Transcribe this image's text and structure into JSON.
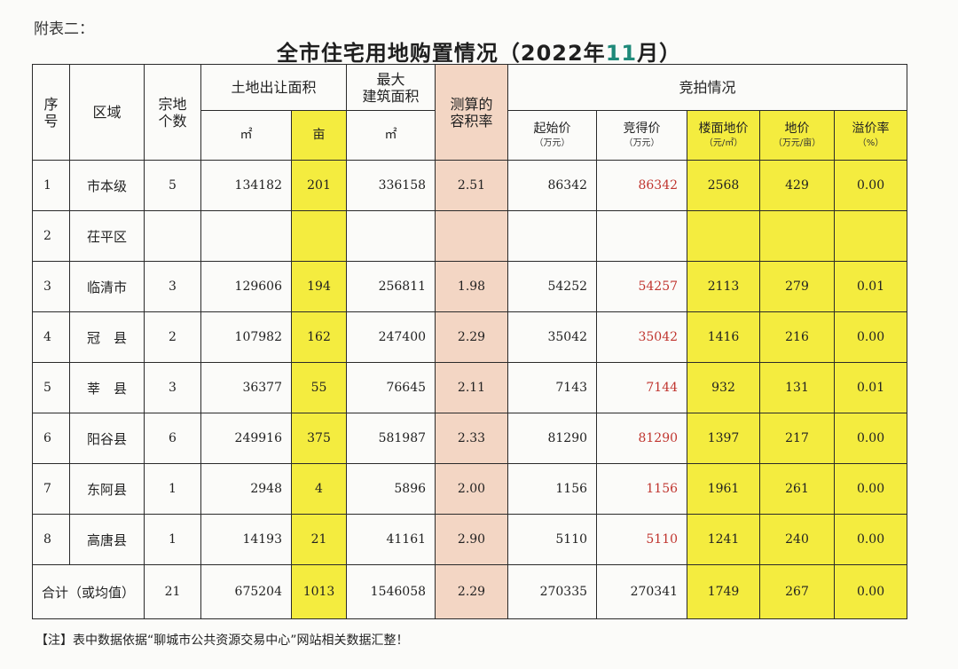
{
  "annex_label": "附表二：",
  "title_prefix": "全市住宅用地购置情况（2022年",
  "title_month": "11",
  "title_suffix": "月）",
  "headers": {
    "seq": "序号",
    "region": "区域",
    "count": "宗地个数",
    "land_area": "土地出让面积",
    "land_m2": "㎡",
    "land_mu": "亩",
    "max_build_line1": "最大",
    "max_build_line2": "建筑面积",
    "max_build_unit": "㎡",
    "far_line1": "测算的",
    "far_line2": "容积率",
    "auction": "竞拍情况",
    "start_price": "起始价",
    "start_price_unit": "（万元）",
    "final_price": "竞得价",
    "final_price_unit": "（万元）",
    "floor_price": "楼面地价",
    "floor_price_unit": "（元/㎡）",
    "land_price": "地价",
    "land_price_unit": "（万元/亩）",
    "premium": "溢价率",
    "premium_unit": "（%）"
  },
  "rows": [
    {
      "seq": "1",
      "region": "市本级",
      "count": "5",
      "m2": "134182",
      "mu": "201",
      "build": "336158",
      "far": "2.51",
      "start": "86342",
      "final": "86342",
      "floor": "2568",
      "land": "429",
      "premium": "0.00"
    },
    {
      "seq": "2",
      "region": "茌平区",
      "count": "",
      "m2": "",
      "mu": "",
      "build": "",
      "far": "",
      "start": "",
      "final": "",
      "floor": "",
      "land": "",
      "premium": ""
    },
    {
      "seq": "3",
      "region": "临清市",
      "count": "3",
      "m2": "129606",
      "mu": "194",
      "build": "256811",
      "far": "1.98",
      "start": "54252",
      "final": "54257",
      "floor": "2113",
      "land": "279",
      "premium": "0.01"
    },
    {
      "seq": "4",
      "region": "冠　县",
      "count": "2",
      "m2": "107982",
      "mu": "162",
      "build": "247400",
      "far": "2.29",
      "start": "35042",
      "final": "35042",
      "floor": "1416",
      "land": "216",
      "premium": "0.00"
    },
    {
      "seq": "5",
      "region": "莘　县",
      "count": "3",
      "m2": "36377",
      "mu": "55",
      "build": "76645",
      "far": "2.11",
      "start": "7143",
      "final": "7144",
      "floor": "932",
      "land": "131",
      "premium": "0.01"
    },
    {
      "seq": "6",
      "region": "阳谷县",
      "count": "6",
      "m2": "249916",
      "mu": "375",
      "build": "581987",
      "far": "2.33",
      "start": "81290",
      "final": "81290",
      "floor": "1397",
      "land": "217",
      "premium": "0.00"
    },
    {
      "seq": "7",
      "region": "东阿县",
      "count": "1",
      "m2": "2948",
      "mu": "4",
      "build": "5896",
      "far": "2.00",
      "start": "1156",
      "final": "1156",
      "floor": "1961",
      "land": "261",
      "premium": "0.00"
    },
    {
      "seq": "8",
      "region": "高唐县",
      "count": "1",
      "m2": "14193",
      "mu": "21",
      "build": "41161",
      "far": "2.90",
      "start": "5110",
      "final": "5110",
      "floor": "1241",
      "land": "240",
      "premium": "0.00"
    }
  ],
  "total": {
    "label": "合计（或均值）",
    "count": "21",
    "m2": "675204",
    "mu": "1013",
    "build": "1546058",
    "far": "2.29",
    "start": "270335",
    "final": "270341",
    "floor": "1749",
    "land": "267",
    "premium": "0.00"
  },
  "note": "【注】表中数据依据“聊城市公共资源交易中心”网站相关数据汇整！",
  "colors": {
    "highlight_yellow": "#f4ec3f",
    "highlight_pink": "#f3d6c4",
    "final_price_red": "#c0352f",
    "title_accent": "#1f8a7a"
  }
}
